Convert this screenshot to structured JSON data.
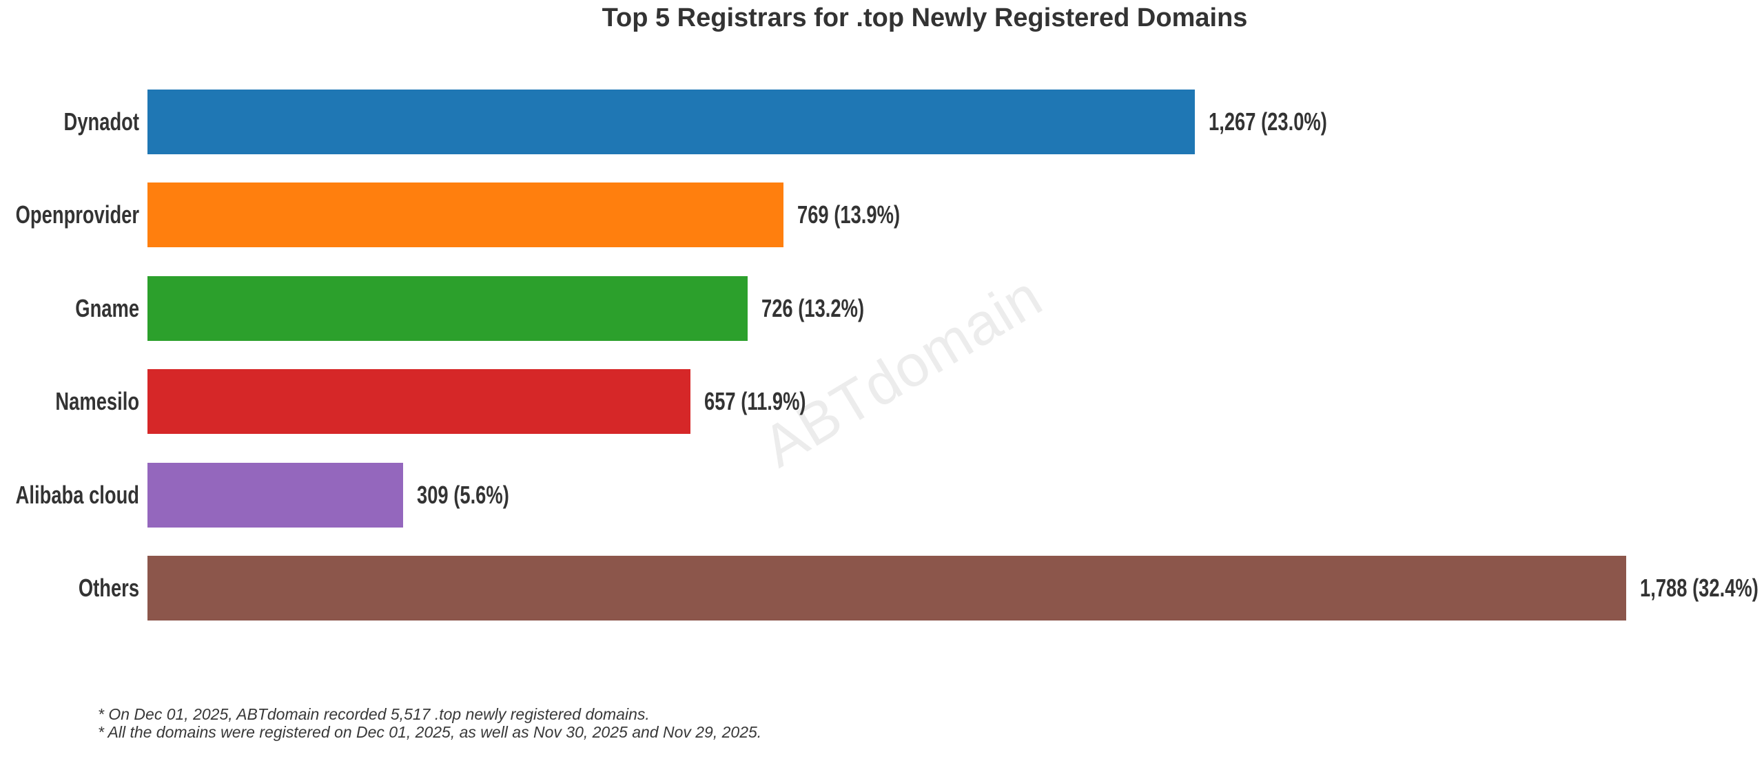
{
  "title": "Top 5 Registrars for .top Newly Registered Domains",
  "watermark": "ABTdomain",
  "footnotes": {
    "line1": "* On Dec 01, 2025, ABTdomain recorded 5,517 .top newly registered domains.",
    "line2": "* All the domains were registered on Dec 01, 2025, as well as Nov 30, 2025 and Nov 29, 2025."
  },
  "chart_data": {
    "type": "bar",
    "orientation": "horizontal",
    "title": "Top 5 Registrars for .top Newly Registered Domains",
    "categories": [
      "Dynadot",
      "Openprovider",
      "Gname",
      "Namesilo",
      "Alibaba cloud",
      "Others"
    ],
    "values": [
      1267,
      769,
      726,
      657,
      309,
      1788
    ],
    "percentages": [
      23.0,
      13.9,
      13.2,
      11.9,
      5.6,
      32.4
    ],
    "value_labels": [
      "1,267 (23.0%)",
      "769 (13.9%)",
      "726 (13.2%)",
      "657 (11.9%)",
      "309 (5.6%)",
      "1,788 (32.4%)"
    ],
    "total_recorded": "5,517",
    "colors": [
      "#1f77b4",
      "#ff7f0e",
      "#2ca02c",
      "#d62728",
      "#9467bd",
      "#8c564b"
    ],
    "xlabel": "",
    "ylabel": "",
    "xlim": [
      0,
      1955
    ],
    "grid": false,
    "legend_position": "none",
    "axes_visible": false,
    "bar_label_position": "outside-right"
  },
  "style_colors": {
    "text": "#333333",
    "footnote_text": "#383838",
    "watermark_text": "#ececec",
    "background": "#ffffff"
  }
}
